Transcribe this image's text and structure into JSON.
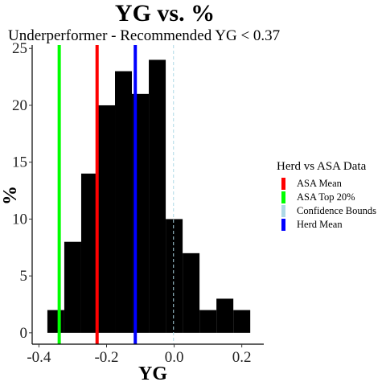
{
  "chart_data": {
    "type": "bar",
    "title": "YG  vs.  %",
    "subtitle": "Underperformer - Recommended  YG < 0.37",
    "xlabel": "YG",
    "ylabel": "%",
    "xlim": [
      -0.42,
      0.265
    ],
    "ylim": [
      -1.0,
      25.3
    ],
    "x_ticks": [
      -0.4,
      -0.2,
      0.0,
      0.2
    ],
    "x_tick_labels": [
      "-0.4",
      "-0.2",
      "0.0",
      "0.2"
    ],
    "y_ticks": [
      0,
      5,
      10,
      15,
      20,
      25
    ],
    "y_tick_labels": [
      "0",
      "5",
      "10",
      "15",
      "20",
      "25"
    ],
    "bin_width": 0.05,
    "bars": [
      {
        "x0": -0.375,
        "x1": -0.325,
        "value": 2
      },
      {
        "x0": -0.325,
        "x1": -0.275,
        "value": 8
      },
      {
        "x0": -0.275,
        "x1": -0.225,
        "value": 14
      },
      {
        "x0": -0.225,
        "x1": -0.175,
        "value": 20
      },
      {
        "x0": -0.175,
        "x1": -0.125,
        "value": 23
      },
      {
        "x0": -0.125,
        "x1": -0.075,
        "value": 21
      },
      {
        "x0": -0.075,
        "x1": -0.025,
        "value": 24
      },
      {
        "x0": -0.025,
        "x1": 0.025,
        "value": 10
      },
      {
        "x0": 0.025,
        "x1": 0.075,
        "value": 7
      },
      {
        "x0": 0.075,
        "x1": 0.125,
        "value": 2
      },
      {
        "x0": 0.125,
        "x1": 0.175,
        "value": 3
      },
      {
        "x0": 0.175,
        "x1": 0.225,
        "value": 2
      }
    ],
    "bar_color": "#000000",
    "vlines": [
      {
        "name": "ASA Mean",
        "x": -0.228,
        "color": "#ff0000",
        "style": "solid"
      },
      {
        "name": "ASA Top 20%",
        "x": -0.34,
        "color": "#00ff00",
        "style": "solid"
      },
      {
        "name": "Confidence Bounds",
        "x": -0.002,
        "color": "#add8e6",
        "style": "dashed"
      },
      {
        "name": "Herd Mean",
        "x": -0.115,
        "color": "#0000ff",
        "style": "solid"
      }
    ],
    "legend": {
      "title": "Herd vs ASA Data",
      "position": "right",
      "items": [
        {
          "label": "ASA Mean",
          "color": "#ff0000"
        },
        {
          "label": "ASA Top 20%",
          "color": "#00ff00"
        },
        {
          "label": "Confidence Bounds",
          "color": "#add8e6"
        },
        {
          "label": "Herd Mean",
          "color": "#0000ff"
        }
      ]
    },
    "grid": false
  }
}
